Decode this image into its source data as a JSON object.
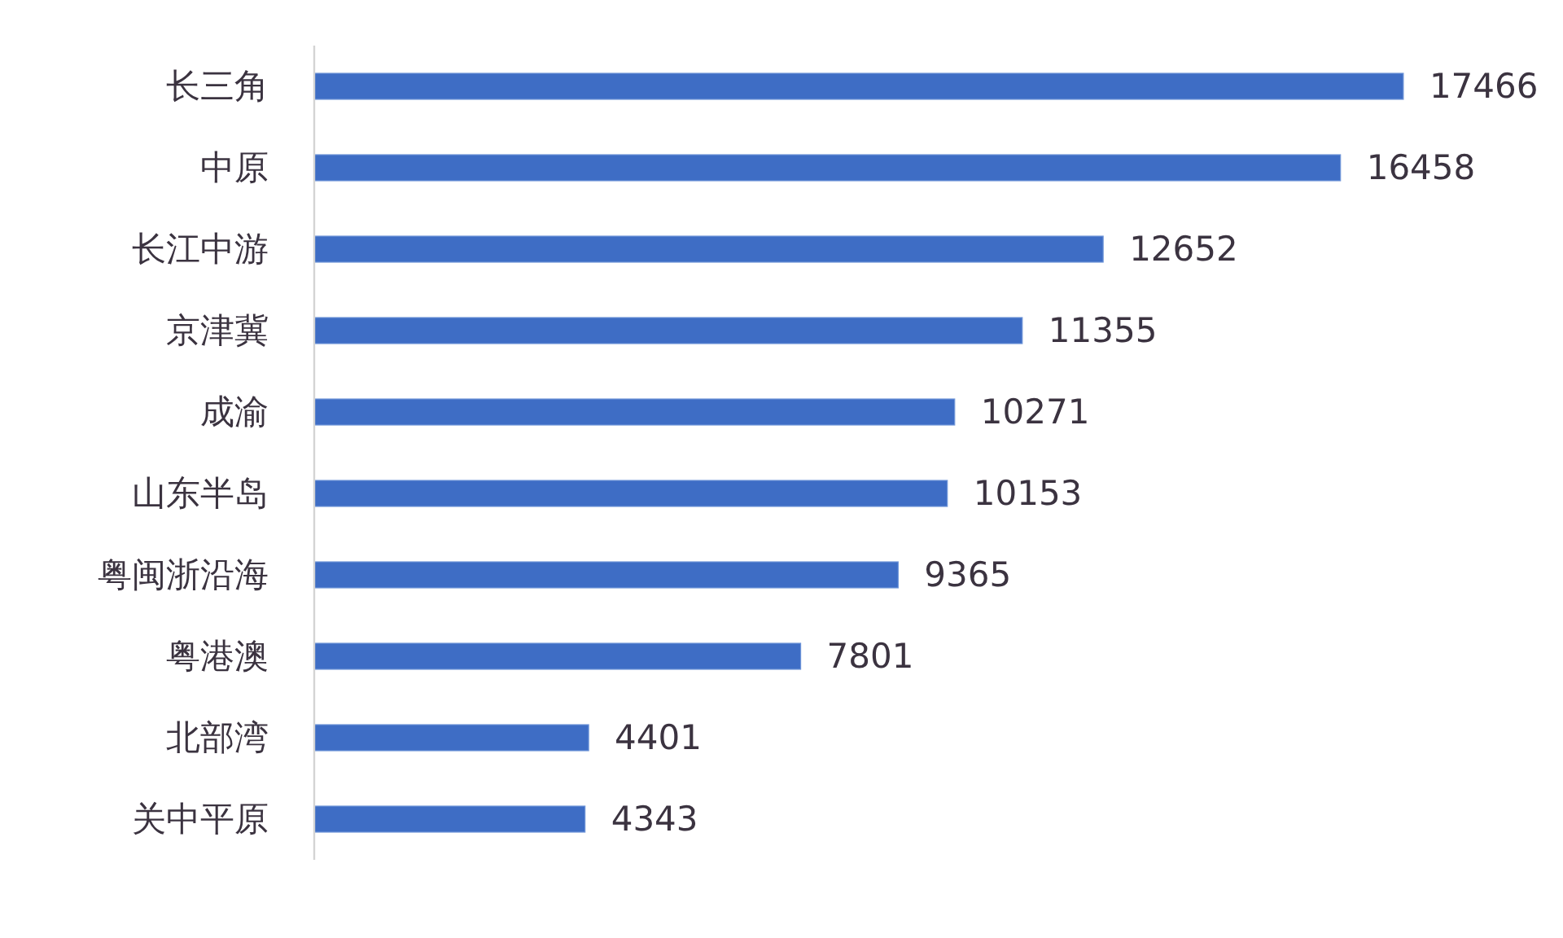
{
  "chart_data": {
    "type": "bar",
    "orientation": "horizontal",
    "categories": [
      "长三角",
      "中原",
      "长江中游",
      "京津冀",
      "成渝",
      "山东半岛",
      "粤闽浙沿海",
      "粤港澳",
      "北部湾",
      "关中平原"
    ],
    "values": [
      17466,
      16458,
      12652,
      11355,
      10271,
      10153,
      9365,
      7801,
      4401,
      4343
    ],
    "color": "#3e6dc5",
    "xlim": [
      0,
      20000
    ],
    "tick_labels": "y",
    "data_labels": true
  }
}
